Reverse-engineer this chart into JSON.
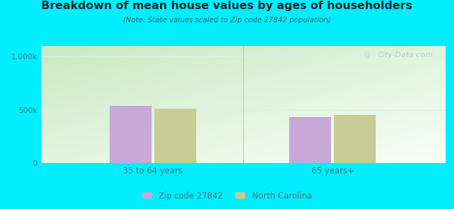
{
  "title": "Breakdown of mean house values by ages of householders",
  "subtitle": "(Note: State values scaled to Zip code 27842 population)",
  "categories": [
    "35 to 64 years",
    "65 years+"
  ],
  "zip_values": [
    540000,
    435000
  ],
  "nc_values": [
    510000,
    455000
  ],
  "zip_color": "#c8a8d8",
  "nc_color": "#c8cc96",
  "ylim": [
    0,
    1100000
  ],
  "yticks": [
    0,
    500000,
    1000000
  ],
  "ytick_labels": [
    "0",
    "500k",
    "1,000k"
  ],
  "legend_zip": "Zip code 27842",
  "legend_nc": "North Carolina",
  "bg_outer": "#00eeff",
  "bg_plot_topleft": "#c8e8c0",
  "bg_plot_bottomright": "#f8fff8",
  "watermark": "City-Data.com",
  "bar_width": 0.28,
  "title_color": "#222222",
  "subtitle_color": "#336666",
  "tick_color": "#447777",
  "grid_color": "#ddeeee"
}
